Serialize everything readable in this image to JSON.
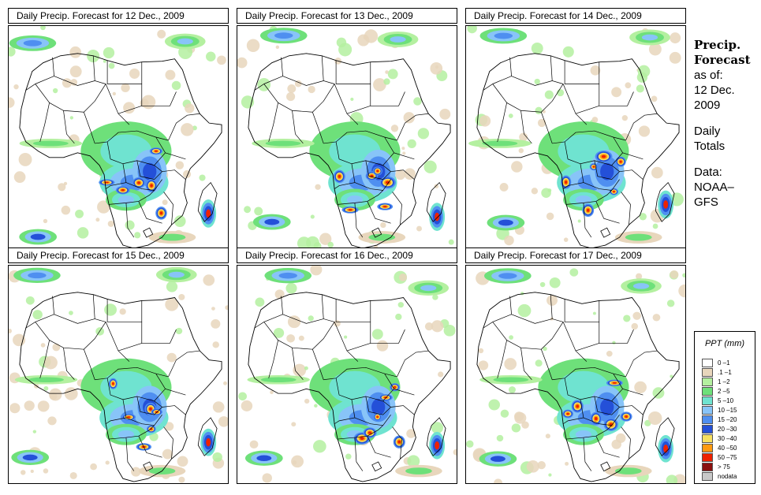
{
  "panels": [
    {
      "title": "Daily Precip. Forecast for  12 Dec., 2009",
      "seed": 12
    },
    {
      "title": "Daily Precip. Forecast for  13 Dec., 2009",
      "seed": 13
    },
    {
      "title": "Daily Precip. Forecast for  14 Dec., 2009",
      "seed": 14
    },
    {
      "title": "Daily Precip. Forecast for  15 Dec., 2009",
      "seed": 15
    },
    {
      "title": "Daily Precip. Forecast for  16 Dec., 2009",
      "seed": 16
    },
    {
      "title": "Daily Precip. Forecast for  17 Dec., 2009",
      "seed": 17
    }
  ],
  "side": {
    "title_line1": "Precip.",
    "title_line2": "Forecast",
    "asof_line1": "as of:",
    "asof_line2": "12 Dec.",
    "asof_line3": "2009",
    "totals_line1": "Daily",
    "totals_line2": "Totals",
    "source_line1": "Data:",
    "source_line2": "NOAA–",
    "source_line3": "GFS"
  },
  "legend": {
    "title": "PPT (mm)",
    "items": [
      {
        "label": "0 –1",
        "color": "#ffffff"
      },
      {
        "label": ".1 –1",
        "color": "#e8d6bc"
      },
      {
        "label": "1 –2",
        "color": "#b4f0a0"
      },
      {
        "label": "2 –5",
        "color": "#6ee07a"
      },
      {
        "label": "5 –10",
        "color": "#6fe3d0"
      },
      {
        "label": "10 –15",
        "color": "#88c4f8"
      },
      {
        "label": "15 –20",
        "color": "#4f8ff0"
      },
      {
        "label": "20 –30",
        "color": "#2450d8"
      },
      {
        "label": "30 –40",
        "color": "#f7e060"
      },
      {
        "label": "40 –50",
        "color": "#ff9a10"
      },
      {
        "label": "50 –75",
        "color": "#ee2200"
      },
      {
        "label": "> 75",
        "color": "#8a1010"
      },
      {
        "label": "nodata",
        "color": "#c8c8c8"
      }
    ]
  }
}
